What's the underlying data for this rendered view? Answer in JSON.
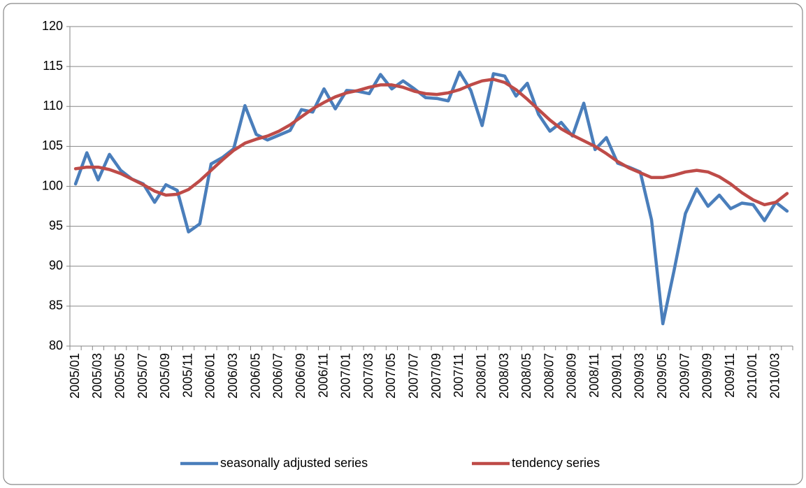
{
  "chart_data": {
    "type": "line",
    "categories": [
      "2005/01",
      null,
      "2005/03",
      null,
      "2005/05",
      null,
      "2005/07",
      null,
      "2005/09",
      null,
      "2005/11",
      null,
      "2006/01",
      null,
      "2006/03",
      null,
      "2006/05",
      null,
      "2006/07",
      null,
      "2006/09",
      null,
      "2006/11",
      null,
      "2007/01",
      null,
      "2007/03",
      null,
      "2007/05",
      null,
      "2007/07",
      null,
      "2007/09",
      null,
      "2007/11",
      null,
      "2008/01",
      null,
      "2008/03",
      null,
      "2008/05",
      null,
      "2008/07",
      null,
      "2008/09",
      null,
      "2008/11",
      null,
      "2009/01",
      null,
      "2009/03",
      null,
      "2009/05",
      null,
      "2009/07",
      null,
      "2009/09",
      null,
      "2009/11",
      null,
      "2010/01",
      null,
      "2010/03",
      null
    ],
    "series": [
      {
        "name": "seasonally adjusted series",
        "color": "#4a7ebb",
        "values": [
          100.3,
          104.2,
          100.8,
          104.0,
          102.0,
          100.9,
          100.3,
          98.0,
          100.2,
          99.5,
          94.3,
          95.3,
          102.8,
          103.6,
          104.7,
          110.1,
          106.5,
          105.8,
          106.4,
          107.0,
          109.6,
          109.3,
          112.2,
          109.7,
          112.0,
          111.9,
          111.6,
          114.0,
          112.2,
          113.2,
          112.2,
          111.1,
          111.0,
          110.7,
          114.3,
          112.0,
          107.6,
          114.1,
          113.8,
          111.3,
          112.9,
          109.0,
          106.9,
          108.0,
          106.3,
          110.4,
          104.6,
          106.1,
          102.9,
          102.4,
          101.8,
          95.8,
          82.8,
          89.5,
          96.6,
          99.7,
          97.5,
          98.9,
          97.2,
          97.9,
          97.7,
          95.7,
          98.0,
          96.9
        ]
      },
      {
        "name": "tendency series",
        "color": "#be4b48",
        "values": [
          102.2,
          102.4,
          102.4,
          102.1,
          101.6,
          100.9,
          100.2,
          99.4,
          98.9,
          99.0,
          99.6,
          100.7,
          102.0,
          103.3,
          104.5,
          105.4,
          105.9,
          106.3,
          106.9,
          107.7,
          108.7,
          109.7,
          110.5,
          111.2,
          111.7,
          112.0,
          112.4,
          112.7,
          112.7,
          112.4,
          111.9,
          111.6,
          111.5,
          111.7,
          112.1,
          112.7,
          113.2,
          113.4,
          113.0,
          112.1,
          110.9,
          109.6,
          108.3,
          107.2,
          106.4,
          105.7,
          105.0,
          104.1,
          103.1,
          102.3,
          101.7,
          101.1,
          101.1,
          101.4,
          101.8,
          102.0,
          101.8,
          101.2,
          100.3,
          99.2,
          98.3,
          97.7,
          98.0,
          99.1
        ]
      }
    ],
    "ylim": [
      80,
      120
    ],
    "yticks": [
      80,
      85,
      90,
      95,
      100,
      105,
      110,
      115,
      120
    ],
    "grid": true,
    "legend": "bottom"
  }
}
